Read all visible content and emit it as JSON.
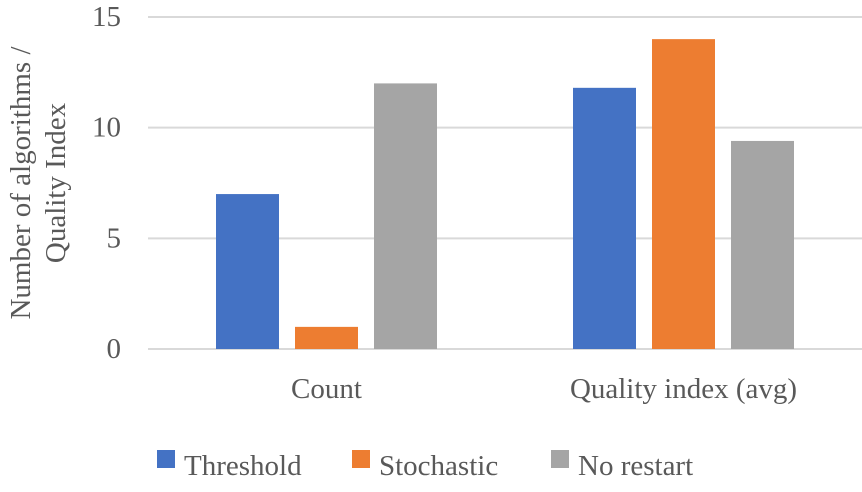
{
  "chart_data": {
    "type": "bar",
    "title": "",
    "xlabel": "",
    "ylabel": "Number of algorithms / Quality Index",
    "ylabel_lines": [
      "Number of algorithms /",
      "Quality Index"
    ],
    "categories": [
      "Count",
      "Quality index (avg)"
    ],
    "series": [
      {
        "name": "Threshold",
        "color": "#4472C4",
        "values": [
          7,
          11.8
        ]
      },
      {
        "name": "Stochastic",
        "color": "#ED7D31",
        "values": [
          1,
          14
        ]
      },
      {
        "name": "No restart",
        "color": "#A5A5A5",
        "values": [
          12,
          9.4
        ]
      }
    ],
    "ylim": [
      0,
      15
    ],
    "yticks": [
      0,
      5,
      10,
      15
    ],
    "grid": true,
    "legend_position": "bottom"
  }
}
